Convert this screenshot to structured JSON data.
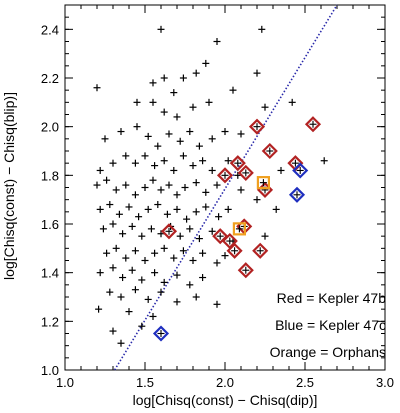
{
  "chart_data": {
    "type": "scatter",
    "xlabel": "log[Chisq(const) − Chisq(dip)]",
    "ylabel": "log[Chisq(const) − Chisq(blip)]",
    "xlim": [
      1.0,
      3.0
    ],
    "ylim": [
      1.0,
      2.5
    ],
    "x_ticks": [
      "1.0",
      "1.5",
      "2.0",
      "2.5",
      "3.0"
    ],
    "y_ticks": [
      "1.0",
      "1.2",
      "1.4",
      "1.6",
      "1.8",
      "2.0",
      "2.2",
      "2.4"
    ],
    "grid": false,
    "legend_position": "bottom-right",
    "legend": [
      {
        "text": "Red = Kepler 47b",
        "color": "#b22222"
      },
      {
        "text": "Blue = Kepler 47c",
        "color": "#1f2fbf"
      },
      {
        "text": "Orange = Orphans",
        "color": "#f0a020"
      }
    ],
    "reference_line": {
      "style": "dotted",
      "color": "#2a2aaa",
      "points": [
        [
          1.31,
          1.0
        ],
        [
          2.7,
          2.5
        ]
      ]
    },
    "series": [
      {
        "marker": "plus",
        "color": "#000000",
        "points": [
          [
            1.6,
            2.4
          ],
          [
            1.95,
            2.35
          ],
          [
            2.23,
            2.4
          ],
          [
            1.2,
            2.16
          ],
          [
            1.55,
            2.18
          ],
          [
            1.62,
            2.2
          ],
          [
            1.68,
            2.14
          ],
          [
            1.74,
            2.2
          ],
          [
            1.82,
            2.22
          ],
          [
            1.88,
            2.26
          ],
          [
            1.45,
            2.1
          ],
          [
            1.55,
            2.1
          ],
          [
            1.62,
            2.06
          ],
          [
            1.7,
            2.04
          ],
          [
            1.8,
            2.08
          ],
          [
            1.9,
            2.1
          ],
          [
            2.2,
            2.22
          ],
          [
            2.05,
            2.15
          ],
          [
            1.25,
            1.95
          ],
          [
            1.35,
            1.98
          ],
          [
            1.45,
            2.0
          ],
          [
            1.52,
            1.96
          ],
          [
            1.58,
            1.92
          ],
          [
            1.65,
            1.97
          ],
          [
            1.72,
            1.94
          ],
          [
            1.78,
            1.98
          ],
          [
            1.84,
            1.92
          ],
          [
            1.92,
            1.95
          ],
          [
            2.0,
            1.98
          ],
          [
            2.1,
            1.97
          ],
          [
            2.25,
            2.08
          ],
          [
            2.42,
            2.1
          ],
          [
            2.62,
            1.86
          ],
          [
            1.22,
            1.82
          ],
          [
            1.3,
            1.85
          ],
          [
            1.38,
            1.88
          ],
          [
            1.44,
            1.85
          ],
          [
            1.5,
            1.88
          ],
          [
            1.56,
            1.84
          ],
          [
            1.62,
            1.86
          ],
          [
            1.68,
            1.82
          ],
          [
            1.74,
            1.88
          ],
          [
            1.8,
            1.84
          ],
          [
            1.86,
            1.86
          ],
          [
            1.92,
            1.82
          ],
          [
            2.02,
            1.86
          ],
          [
            2.08,
            1.8
          ],
          [
            2.35,
            1.82
          ],
          [
            1.2,
            1.76
          ],
          [
            1.26,
            1.78
          ],
          [
            1.32,
            1.74
          ],
          [
            1.38,
            1.76
          ],
          [
            1.44,
            1.72
          ],
          [
            1.5,
            1.75
          ],
          [
            1.55,
            1.78
          ],
          [
            1.6,
            1.74
          ],
          [
            1.65,
            1.76
          ],
          [
            1.7,
            1.72
          ],
          [
            1.75,
            1.75
          ],
          [
            1.82,
            1.77
          ],
          [
            1.88,
            1.73
          ],
          [
            1.95,
            1.76
          ],
          [
            2.1,
            1.74
          ],
          [
            2.32,
            1.66
          ],
          [
            1.22,
            1.66
          ],
          [
            1.28,
            1.68
          ],
          [
            1.34,
            1.64
          ],
          [
            1.4,
            1.67
          ],
          [
            1.46,
            1.63
          ],
          [
            1.52,
            1.66
          ],
          [
            1.58,
            1.68
          ],
          [
            1.64,
            1.64
          ],
          [
            1.7,
            1.66
          ],
          [
            1.76,
            1.62
          ],
          [
            1.82,
            1.65
          ],
          [
            1.88,
            1.67
          ],
          [
            1.96,
            1.63
          ],
          [
            2.02,
            1.66
          ],
          [
            2.2,
            1.7
          ],
          [
            1.24,
            1.58
          ],
          [
            1.3,
            1.6
          ],
          [
            1.36,
            1.56
          ],
          [
            1.42,
            1.59
          ],
          [
            1.48,
            1.55
          ],
          [
            1.54,
            1.58
          ],
          [
            1.6,
            1.56
          ],
          [
            1.66,
            1.59
          ],
          [
            1.72,
            1.55
          ],
          [
            1.78,
            1.58
          ],
          [
            1.84,
            1.54
          ],
          [
            1.92,
            1.57
          ],
          [
            2.05,
            1.53
          ],
          [
            2.25,
            1.55
          ],
          [
            1.26,
            1.48
          ],
          [
            1.32,
            1.5
          ],
          [
            1.38,
            1.46
          ],
          [
            1.44,
            1.49
          ],
          [
            1.5,
            1.45
          ],
          [
            1.56,
            1.48
          ],
          [
            1.62,
            1.5
          ],
          [
            1.68,
            1.46
          ],
          [
            1.74,
            1.49
          ],
          [
            1.8,
            1.45
          ],
          [
            1.86,
            1.48
          ],
          [
            1.95,
            1.44
          ],
          [
            2.0,
            1.47
          ],
          [
            1.22,
            1.4
          ],
          [
            1.3,
            1.42
          ],
          [
            1.36,
            1.38
          ],
          [
            1.42,
            1.41
          ],
          [
            1.48,
            1.37
          ],
          [
            1.56,
            1.4
          ],
          [
            1.62,
            1.36
          ],
          [
            1.7,
            1.39
          ],
          [
            1.78,
            1.35
          ],
          [
            1.86,
            1.38
          ],
          [
            1.28,
            1.32
          ],
          [
            1.35,
            1.3
          ],
          [
            1.44,
            1.33
          ],
          [
            1.52,
            1.29
          ],
          [
            1.6,
            1.32
          ],
          [
            1.7,
            1.28
          ],
          [
            1.82,
            1.3
          ],
          [
            1.95,
            1.27
          ],
          [
            1.21,
            1.25
          ],
          [
            1.4,
            1.24
          ],
          [
            1.55,
            1.22
          ],
          [
            1.3,
            1.16
          ],
          [
            1.48,
            1.18
          ],
          [
            1.35,
            1.11
          ]
        ]
      },
      {
        "name": "Kepler 47b",
        "marker": "diamond",
        "color": "#b22222",
        "points": [
          [
            1.65,
            1.57
          ],
          [
            1.97,
            1.55
          ],
          [
            2.0,
            1.8
          ],
          [
            2.03,
            1.53
          ],
          [
            2.06,
            1.49
          ],
          [
            2.08,
            1.85
          ],
          [
            2.13,
            1.81
          ],
          [
            2.13,
            1.41
          ],
          [
            2.2,
            2.0
          ],
          [
            2.22,
            1.49
          ],
          [
            2.25,
            1.74
          ],
          [
            2.28,
            1.9
          ],
          [
            2.44,
            1.85
          ],
          [
            2.55,
            2.01
          ],
          [
            2.12,
            1.59
          ]
        ]
      },
      {
        "name": "Kepler 47c",
        "marker": "diamond",
        "color": "#1f2fbf",
        "points": [
          [
            1.6,
            1.15
          ],
          [
            2.45,
            1.72
          ],
          [
            2.47,
            1.82
          ]
        ]
      },
      {
        "name": "Orphans",
        "marker": "square",
        "color": "#f0a020",
        "points": [
          [
            2.09,
            1.58
          ],
          [
            2.24,
            1.77
          ]
        ]
      }
    ]
  }
}
